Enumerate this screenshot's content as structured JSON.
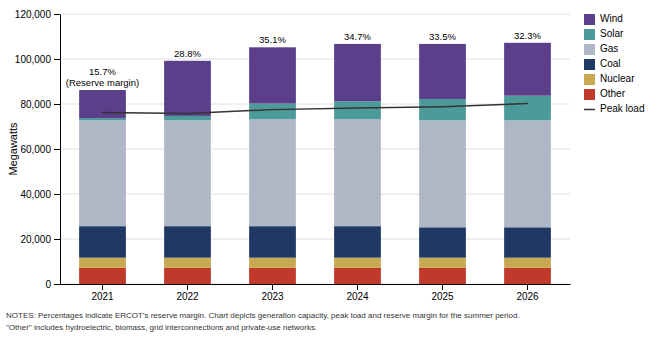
{
  "chart_data": {
    "type": "bar",
    "stacked": true,
    "categories": [
      2021,
      2022,
      2023,
      2024,
      2025,
      2026
    ],
    "series": [
      {
        "name": "Other",
        "type": "bar",
        "color": "#c0392b",
        "values": [
          7200,
          7200,
          7200,
          7200,
          7200,
          7200
        ]
      },
      {
        "name": "Nuclear",
        "type": "bar",
        "color": "#c8a951",
        "values": [
          4500,
          4500,
          4500,
          4500,
          4500,
          4500
        ]
      },
      {
        "name": "Coal",
        "type": "bar",
        "color": "#1f3864",
        "values": [
          14000,
          14000,
          14000,
          14000,
          13500,
          13500
        ]
      },
      {
        "name": "Gas",
        "type": "bar",
        "color": "#b0b8c8",
        "values": [
          47000,
          47000,
          47500,
          47500,
          47500,
          47500
        ]
      },
      {
        "name": "Solar",
        "type": "bar",
        "color": "#4d9a9a",
        "values": [
          1000,
          2000,
          7000,
          8000,
          9500,
          11000
        ]
      },
      {
        "name": "Wind",
        "type": "bar",
        "color": "#5b3f8a",
        "values": [
          12500,
          24500,
          25000,
          25500,
          24500,
          23500
        ]
      },
      {
        "name": "Peak load",
        "type": "line",
        "color": "#333333",
        "values": [
          76200,
          75800,
          77500,
          78200,
          78800,
          80200
        ]
      }
    ],
    "annotations": [
      "15.7%\n(Reserve margin)",
      "28.8%",
      "35.1%",
      "34.7%",
      "33.5%",
      "32.3%"
    ],
    "ylabel": "Megawatts",
    "ylim": [
      0,
      120000
    ],
    "yticks": [
      0,
      {
        "value": 20000,
        "label": "20,000"
      },
      {
        "value": 40000,
        "label": "40,000"
      },
      {
        "value": 60000,
        "label": "60,000"
      },
      {
        "value": 80000,
        "label": "80,000"
      },
      {
        "value": 100000,
        "label": "100,000"
      },
      {
        "value": 120000,
        "label": "120,000"
      }
    ],
    "grid": true,
    "legend": "right",
    "notes": [
      "NOTES: Percentages indicate ERCOT's reserve margin. Chart depicts generation capacity, peak load and reserve margin for the summer period.",
      "\"Other\" includes hydroelectric, biomass, grid interconnections and private-use networks."
    ]
  }
}
